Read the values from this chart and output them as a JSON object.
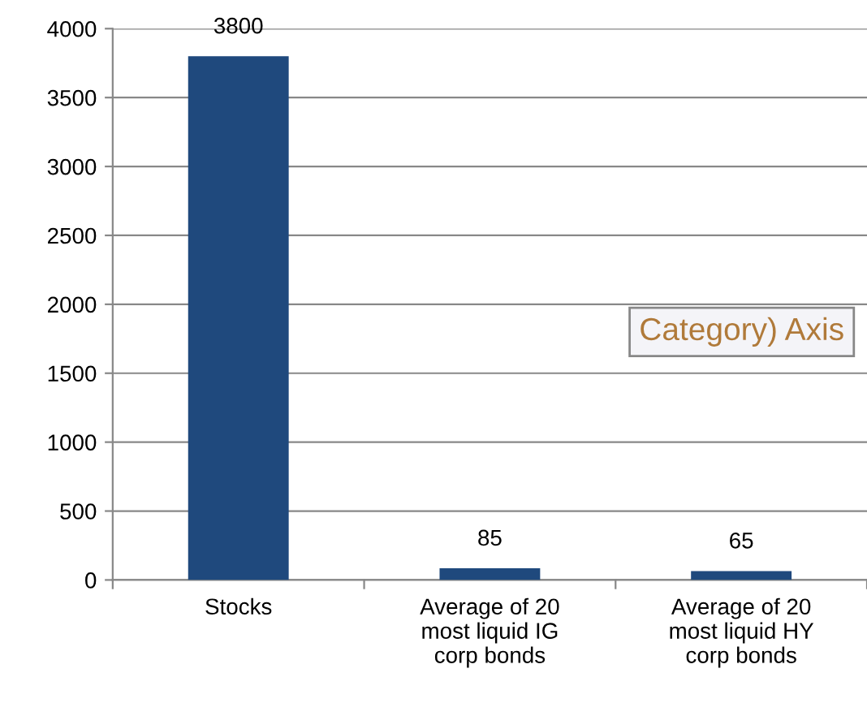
{
  "chart_data": {
    "type": "bar",
    "categories": [
      "Stocks",
      "Average of 20\nmost liquid IG\ncorp bonds",
      "Average of 20\nmost liquid HY\ncorp bonds"
    ],
    "values": [
      3800,
      85,
      65
    ],
    "color": "#1f497d",
    "data_labels": true,
    "grid": "y",
    "ylim": [
      0,
      4000
    ],
    "yticks": [
      0,
      500,
      1000,
      1500,
      2000,
      2500,
      3000,
      3500,
      4000
    ],
    "annotations": [
      "Category) Axis"
    ]
  }
}
